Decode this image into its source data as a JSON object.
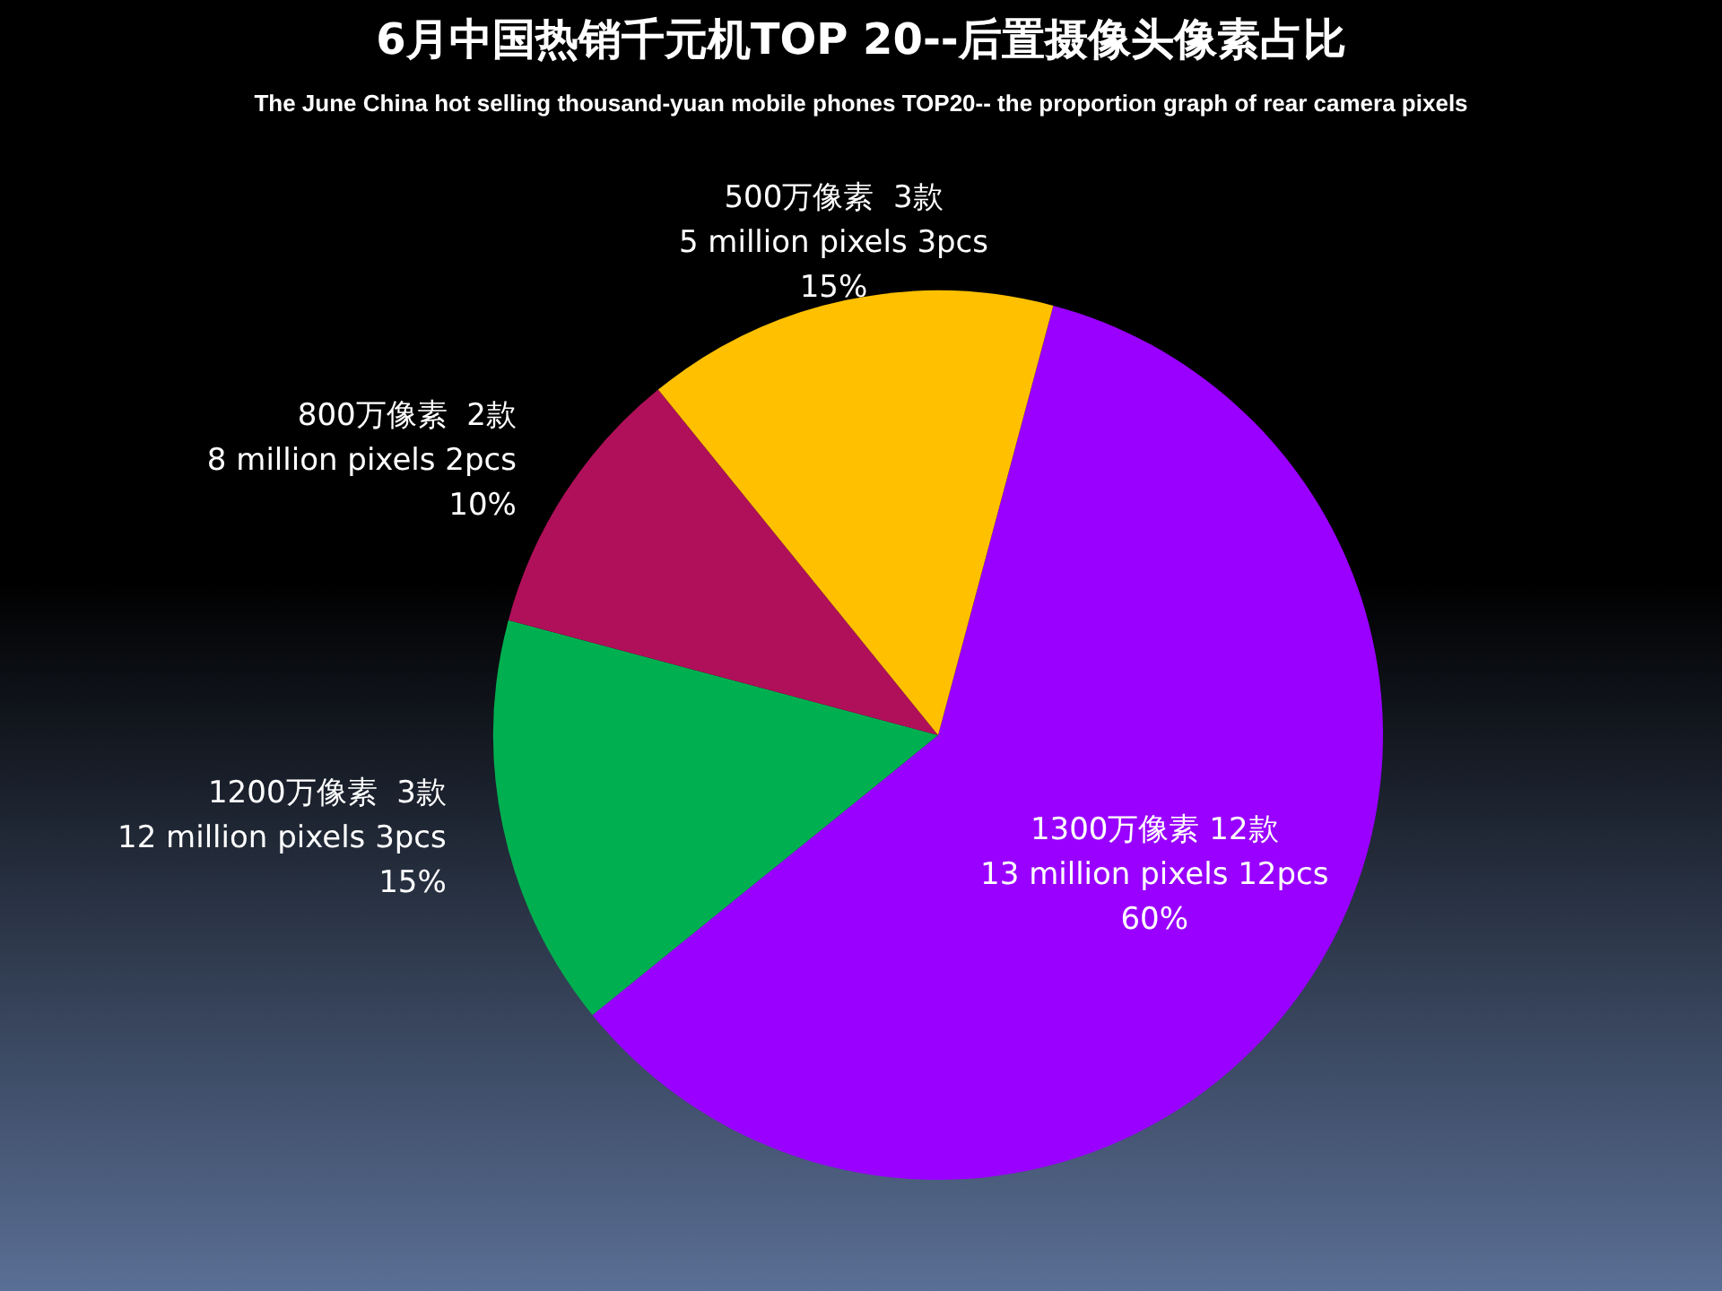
{
  "chart_data": {
    "type": "pie",
    "title": "6月中国热销千元机TOP 20--后置摄像头像素占比",
    "subtitle": "The June China hot selling thousand-yuan mobile phones TOP20-- the proportion graph of rear camera pixels",
    "categories": [
      "1300万像素 12款\n13 million pixels 12pcs",
      "1200万像素  3款\n12 million pixels 3pcs",
      "800万像素  2款\n8 million pixels 2pcs",
      "500万像素  3款\n5 million pixels 3pcs"
    ],
    "values": [
      60,
      15,
      10,
      15
    ],
    "value_labels": [
      "60%",
      "15%",
      "10%",
      "15%"
    ],
    "colors": [
      "#9900ff",
      "#00b050",
      "#b0105a",
      "#ffc000"
    ],
    "legend": false
  }
}
